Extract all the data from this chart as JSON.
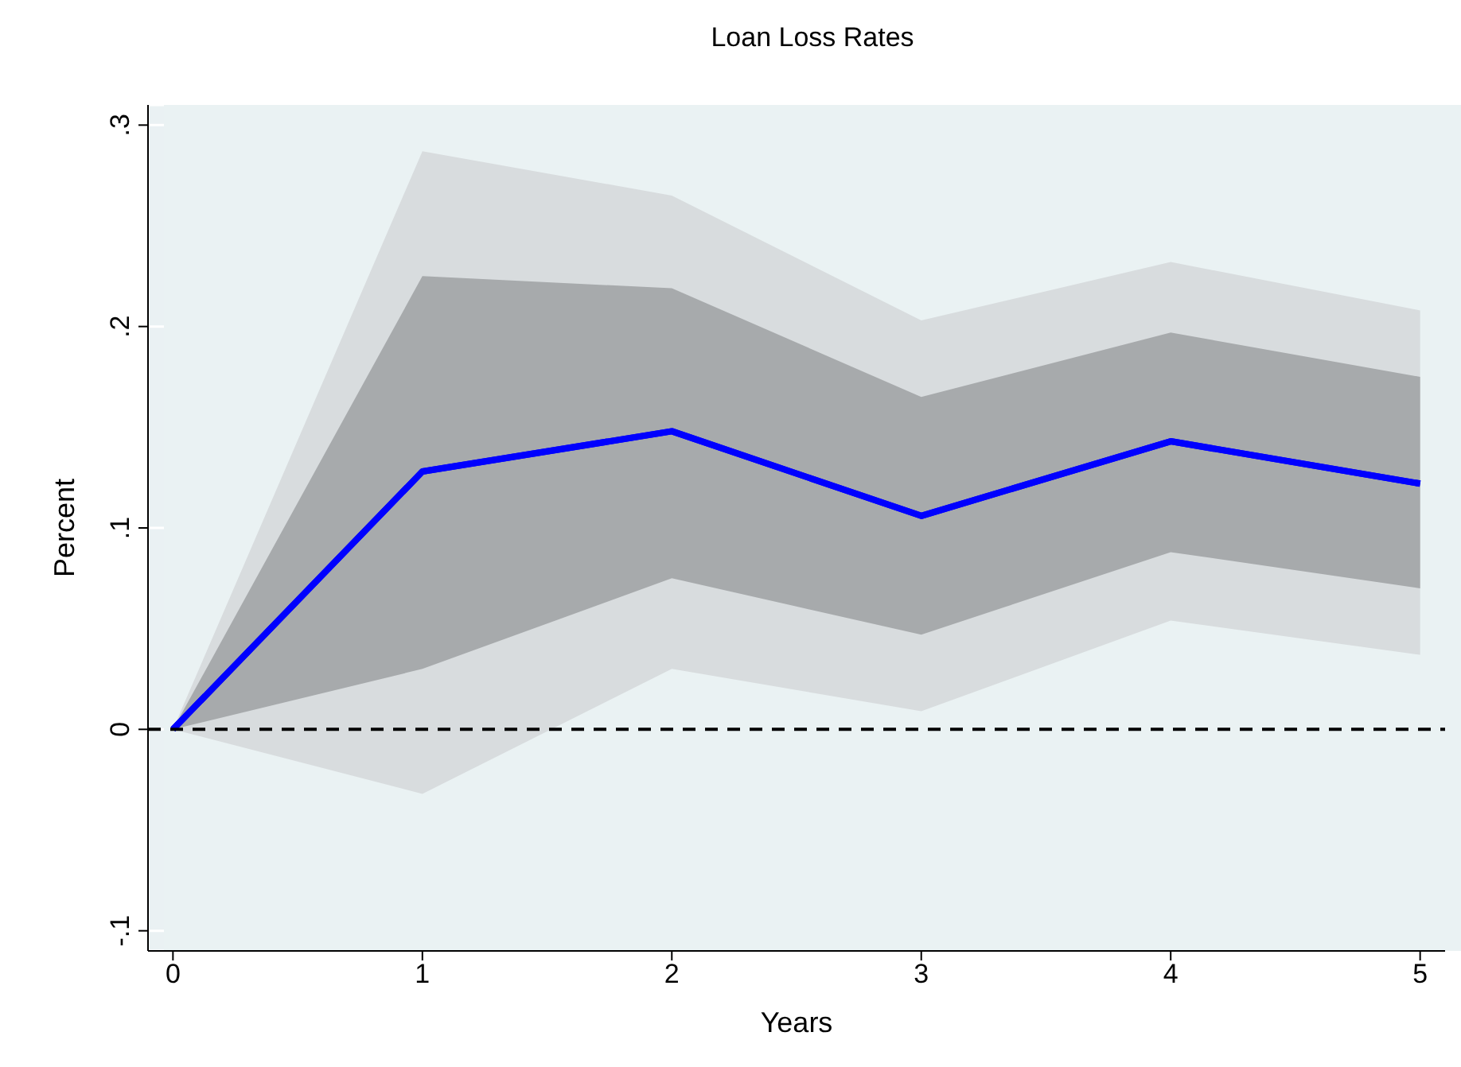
{
  "chart_data": {
    "type": "line",
    "title": "Loan Loss Rates",
    "xlabel": "Years",
    "ylabel": "Percent",
    "x": [
      0,
      1,
      2,
      3,
      4,
      5
    ],
    "series": [
      {
        "color": "#0000ff",
        "values": [
          0,
          0.128,
          0.148,
          0.106,
          0.143,
          0.122
        ],
        "lower": [
          0,
          -0.032,
          0.03,
          0.009,
          0.054,
          0.037
        ],
        "upper": [
          0,
          0.287,
          0.265,
          0.203,
          0.232,
          0.208
        ]
      },
      {
        "color": "#0000ff",
        "values": [
          0,
          0.128,
          0.148,
          0.106,
          0.143,
          0.122
        ],
        "lower": [
          0,
          0.03,
          0.075,
          0.047,
          0.088,
          0.07
        ],
        "upper": [
          0,
          0.225,
          0.219,
          0.165,
          0.197,
          0.175
        ]
      }
    ],
    "xlim": [
      -0.1,
      5.1
    ],
    "xticks": [
      0,
      1,
      2,
      3,
      4,
      5
    ],
    "ylim": [
      -0.11,
      0.31
    ],
    "yticks": [
      {
        "value": -0.1,
        "label": "-.1"
      },
      0,
      {
        "value": 0.1,
        "label": ".1"
      },
      {
        "value": 0.2,
        "label": ".2"
      },
      {
        "value": 0.3,
        "label": ".3"
      }
    ],
    "ref_lines": [
      {
        "axis": "y",
        "value": 0,
        "color": "#000000",
        "line_style": "dashed"
      }
    ],
    "grid": true,
    "marker": "none",
    "line_style": "solid"
  }
}
